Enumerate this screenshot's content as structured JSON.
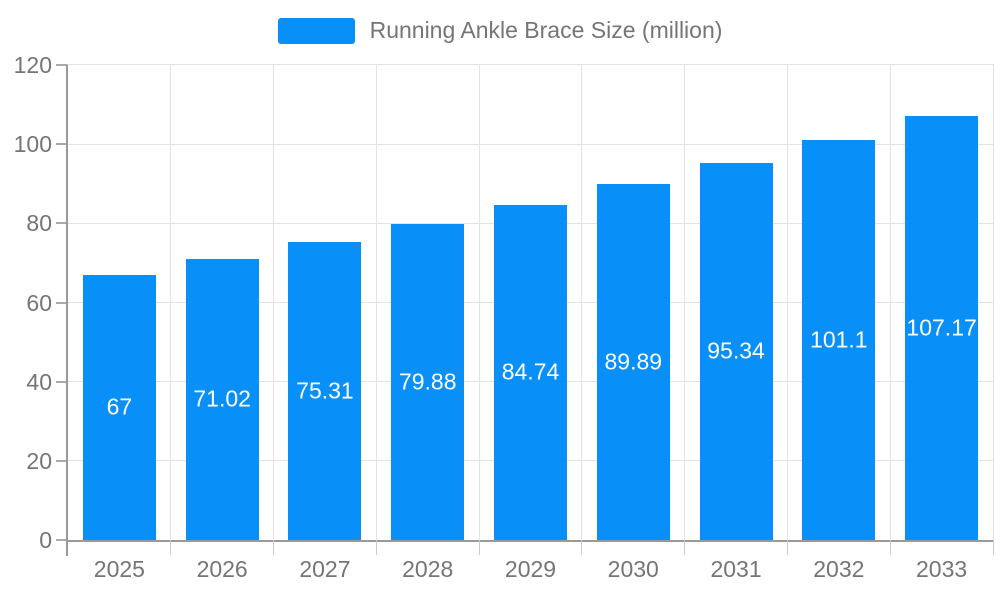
{
  "legend": {
    "label": "Running Ankle Brace Size (million)"
  },
  "colors": {
    "bar": "#0890f8",
    "axis_line": "#999999",
    "gridline": "#e3e3e3",
    "axis_text": "#757575",
    "bar_label_text": "#ffffff",
    "background": "#ffffff"
  },
  "chart_data": {
    "type": "bar",
    "title": "Running Ankle Brace Size (million)",
    "categories": [
      "2025",
      "2026",
      "2027",
      "2028",
      "2029",
      "2030",
      "2031",
      "2032",
      "2033"
    ],
    "values": [
      67,
      71.02,
      75.31,
      79.88,
      84.74,
      89.89,
      95.34,
      101.1,
      107.17
    ],
    "value_labels": [
      "67",
      "71.02",
      "75.31",
      "79.88",
      "84.74",
      "89.89",
      "95.34",
      "101.1",
      "107.17"
    ],
    "xlabel": "",
    "ylabel": "",
    "ylim": [
      0,
      120
    ],
    "yticks": [
      0,
      20,
      40,
      60,
      80,
      100,
      120
    ],
    "grid": true,
    "legend_position": "top",
    "value_label_position": "inside-center"
  }
}
